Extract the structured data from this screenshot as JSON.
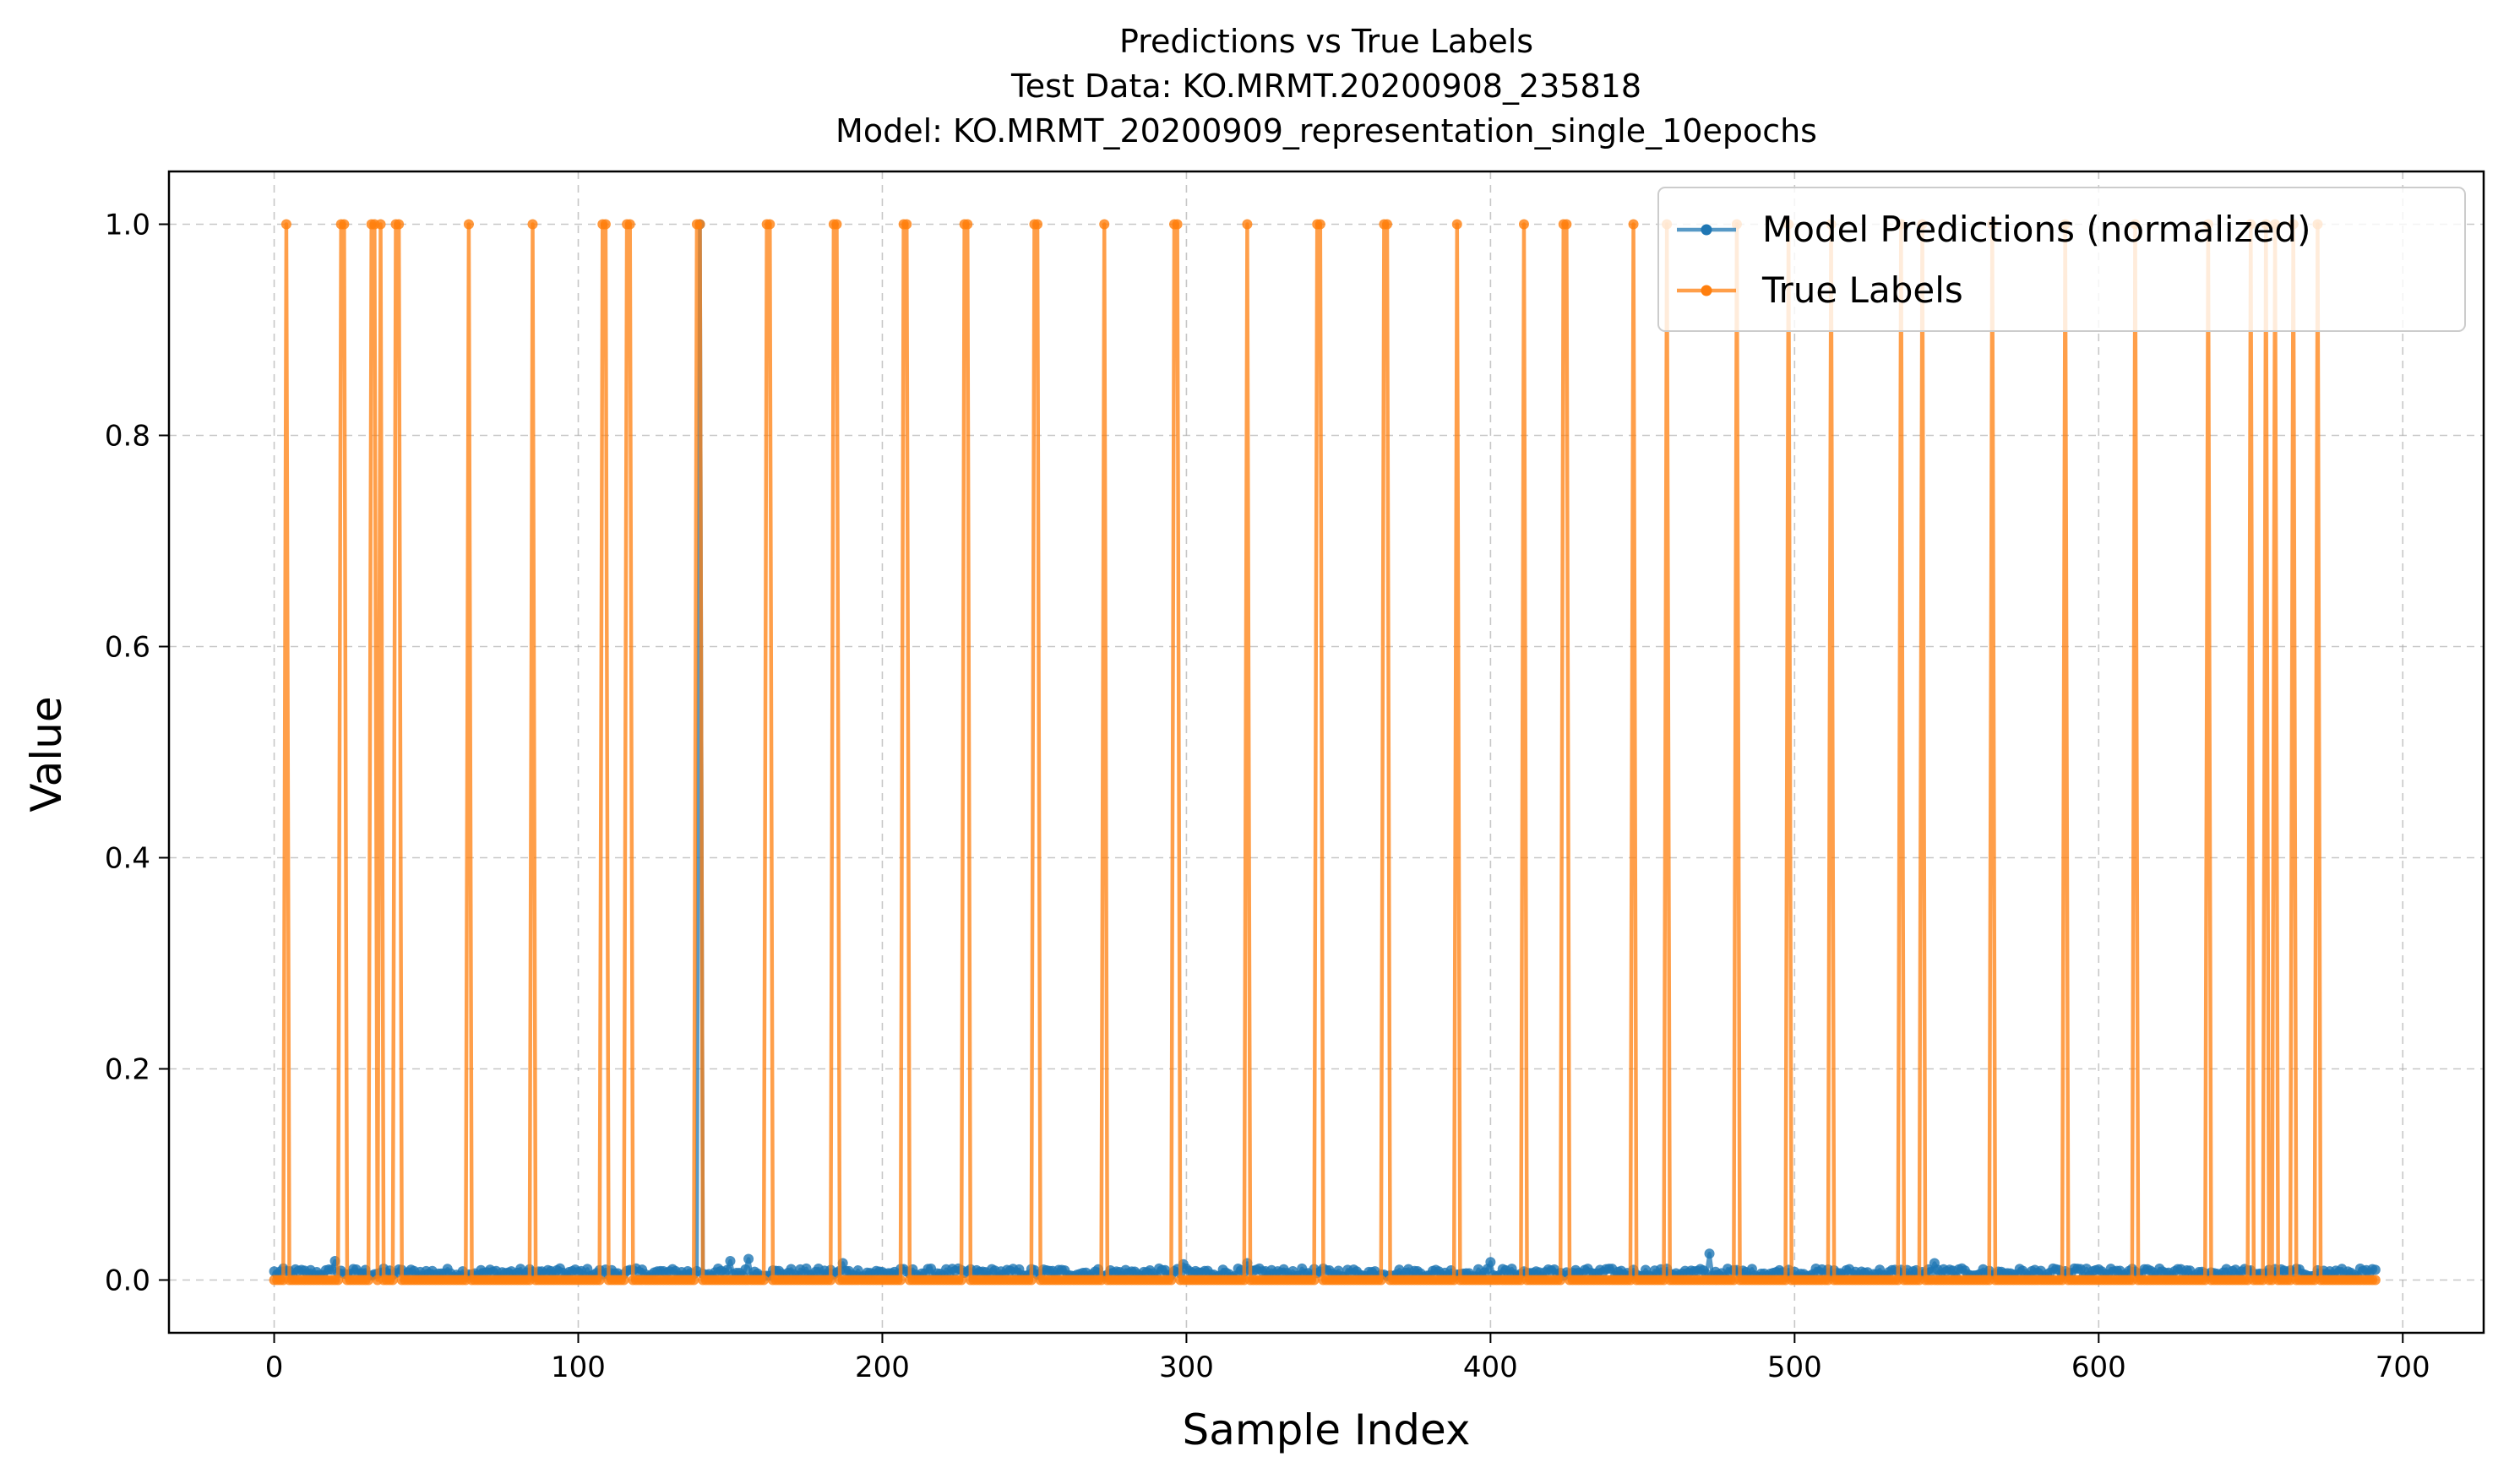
{
  "chart_data": {
    "type": "line",
    "title_lines": [
      "Predictions vs True Labels",
      "Test Data: KO.MRMT.20200908_235818",
      "Model: KO.MRMT_20200909_representation_single_10epochs"
    ],
    "xlabel": "Sample Index",
    "ylabel": "Value",
    "xlim": [
      -34.6,
      726.6
    ],
    "ylim": [
      -0.05,
      1.05
    ],
    "xticks": [
      0,
      100,
      200,
      300,
      400,
      500,
      600,
      700
    ],
    "yticks": [
      0.0,
      0.2,
      0.4,
      0.6,
      0.8,
      1.0
    ],
    "xtick_labels": [
      "0",
      "100",
      "200",
      "300",
      "400",
      "500",
      "600",
      "700"
    ],
    "ytick_labels": [
      "0.0",
      "0.2",
      "0.4",
      "0.6",
      "0.8",
      "1.0"
    ],
    "grid": true,
    "legend_position": "top-right",
    "n_samples": 692,
    "series": [
      {
        "name": "Model Predictions (normalized)",
        "color": "#1f77b4",
        "baseline": 0.007,
        "noise_amplitude": 0.004,
        "peaks": [
          {
            "x": 20,
            "y": 0.018
          },
          {
            "x": 140,
            "y": 0.02
          },
          {
            "x": 150,
            "y": 0.018
          },
          {
            "x": 156,
            "y": 0.02
          },
          {
            "x": 187,
            "y": 0.016
          },
          {
            "x": 299,
            "y": 0.015
          },
          {
            "x": 320,
            "y": 0.016
          },
          {
            "x": 400,
            "y": 0.017
          },
          {
            "x": 472,
            "y": 0.025
          },
          {
            "x": 546,
            "y": 0.016
          }
        ],
        "true_label_response": [
          {
            "x": 140,
            "y": 1.0
          }
        ]
      },
      {
        "name": "True Labels",
        "color": "#ff7f0e",
        "default_value": 0,
        "positive_indices": [
          4,
          22,
          23,
          32,
          33,
          35,
          40,
          41,
          64,
          85,
          108,
          109,
          116,
          117,
          139,
          140,
          162,
          163,
          184,
          185,
          207,
          208,
          227,
          228,
          250,
          251,
          273,
          296,
          297,
          320,
          343,
          344,
          365,
          366,
          389,
          411,
          424,
          425,
          447,
          458,
          481,
          498,
          512,
          535,
          542,
          565,
          589,
          612,
          636,
          650,
          655,
          658,
          664,
          672
        ]
      }
    ]
  }
}
